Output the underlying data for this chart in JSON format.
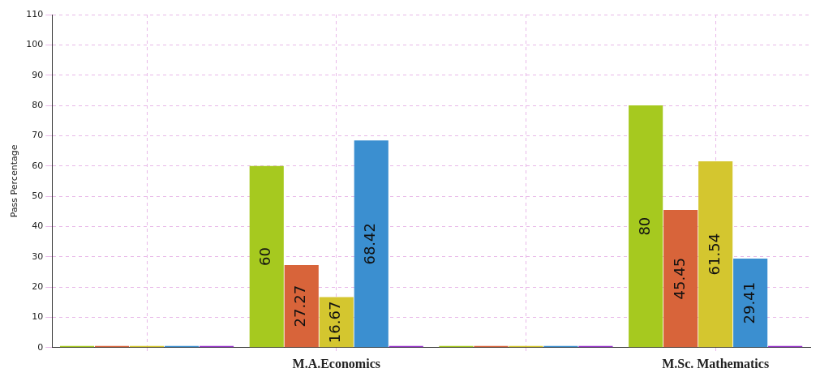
{
  "chart_data": {
    "type": "bar",
    "ylabel": "Pass Percentage",
    "categories": [
      null,
      "M.A.Economics",
      null,
      "M.Sc. Mathematics"
    ],
    "series": [
      {
        "color": "#a6c91f",
        "values": [
          0,
          60,
          0,
          80
        ],
        "value_labels": [
          null,
          "60",
          null,
          "80"
        ]
      },
      {
        "color": "#d8643a",
        "values": [
          0,
          27.27,
          0,
          45.45
        ],
        "value_labels": [
          null,
          "27.27",
          null,
          "45.45"
        ]
      },
      {
        "color": "#d4c62f",
        "values": [
          0,
          16.67,
          0,
          61.54
        ],
        "value_labels": [
          null,
          "16.67",
          null,
          "61.54"
        ]
      },
      {
        "color": "#3b8fd0",
        "values": [
          0,
          68.42,
          0,
          29.41
        ],
        "value_labels": [
          null,
          "68.42",
          null,
          "29.41"
        ]
      },
      {
        "color": "#9933cc",
        "values": [
          0,
          0,
          0,
          0
        ]
      }
    ],
    "ylim": [
      0,
      110
    ],
    "yticks": [
      0,
      10,
      20,
      30,
      40,
      50,
      60,
      70,
      80,
      90,
      100,
      110
    ],
    "grid": true,
    "legend": false
  }
}
